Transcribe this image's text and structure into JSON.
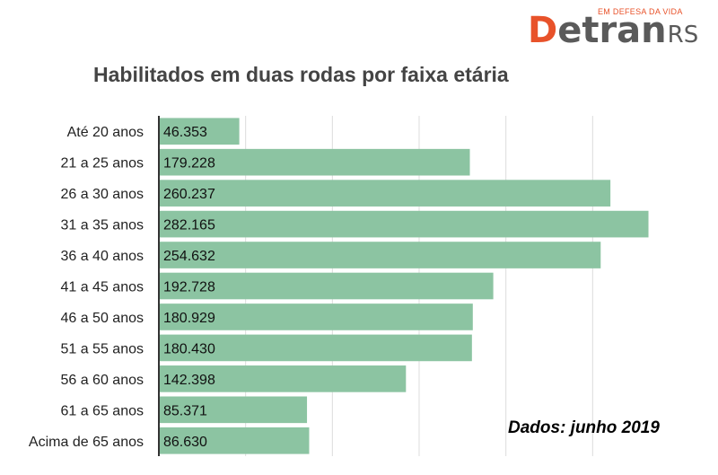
{
  "brand": {
    "tagline": "EM DEFESA DA VIDA",
    "logo_initial": "D",
    "logo_rest": "etran",
    "logo_suffix": "RS"
  },
  "source_note": "Dados: junho 2019",
  "colors": {
    "bar": "#8cc4a2",
    "axis": "#333333",
    "grid": "#dcdcdc",
    "accent": "#e8522a"
  },
  "chart_data": {
    "type": "bar",
    "orientation": "horizontal",
    "title": "Habilitados em duas rodas por faixa etária",
    "categories": [
      "Até 20 anos",
      "21 a 25 anos",
      "26 a 30 anos",
      "31 a 35 anos",
      "36 a 40 anos",
      "41 a 45 anos",
      "46 a 50 anos",
      "51 a 55 anos",
      "56 a 60 anos",
      "61 a 65 anos",
      "Acima de 65 anos"
    ],
    "values": [
      46353,
      179228,
      260237,
      282165,
      254632,
      192728,
      180929,
      180430,
      142398,
      85371,
      86630
    ],
    "value_labels": [
      "46.353",
      "179.228",
      "260.237",
      "282.165",
      "254.632",
      "192.728",
      "180.929",
      "180.430",
      "142.398",
      "85.371",
      "86.630"
    ],
    "xlim": [
      0,
      300000
    ],
    "grid": true,
    "legend": "none"
  }
}
